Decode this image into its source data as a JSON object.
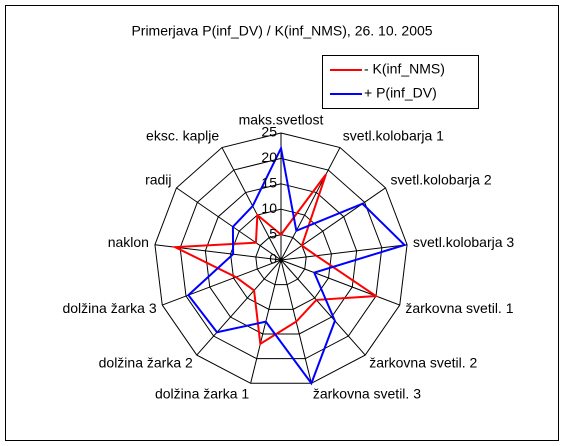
{
  "chart_data": {
    "type": "radar",
    "title": "Primerjava P(inf_DV) / K(inf_NMS), 26. 10. 2005",
    "categories": [
      "maks.svetlost",
      "svetl.kolobarja 1",
      "svetl.kolobarja 2",
      "svetl.kolobarja 3",
      "žarkovna svetil. 1",
      "žarkovna svetil. 2",
      "žarkovna svetil. 3",
      "dolžina žarka 1",
      "dolžina žarka 2",
      "dolžina žarka 3",
      "naklon",
      "radij",
      "eksc. kaplje"
    ],
    "series": [
      {
        "name": "- K(inf_NMS)",
        "color": "#ff0000",
        "values": [
          5,
          19,
          5,
          7,
          20,
          10.5,
          12.5,
          17,
          8,
          9.5,
          21,
          6,
          10
        ]
      },
      {
        "name": "+ P(inf_DV)",
        "color": "#0000ff",
        "values": [
          22,
          6.5,
          19.5,
          24.5,
          7,
          16,
          25,
          12.5,
          19,
          19.5,
          9.5,
          11.5,
          12
        ]
      }
    ],
    "ylim": [
      0,
      25
    ],
    "yticks": [
      0,
      5,
      10,
      15,
      20,
      25
    ],
    "grid": true
  }
}
